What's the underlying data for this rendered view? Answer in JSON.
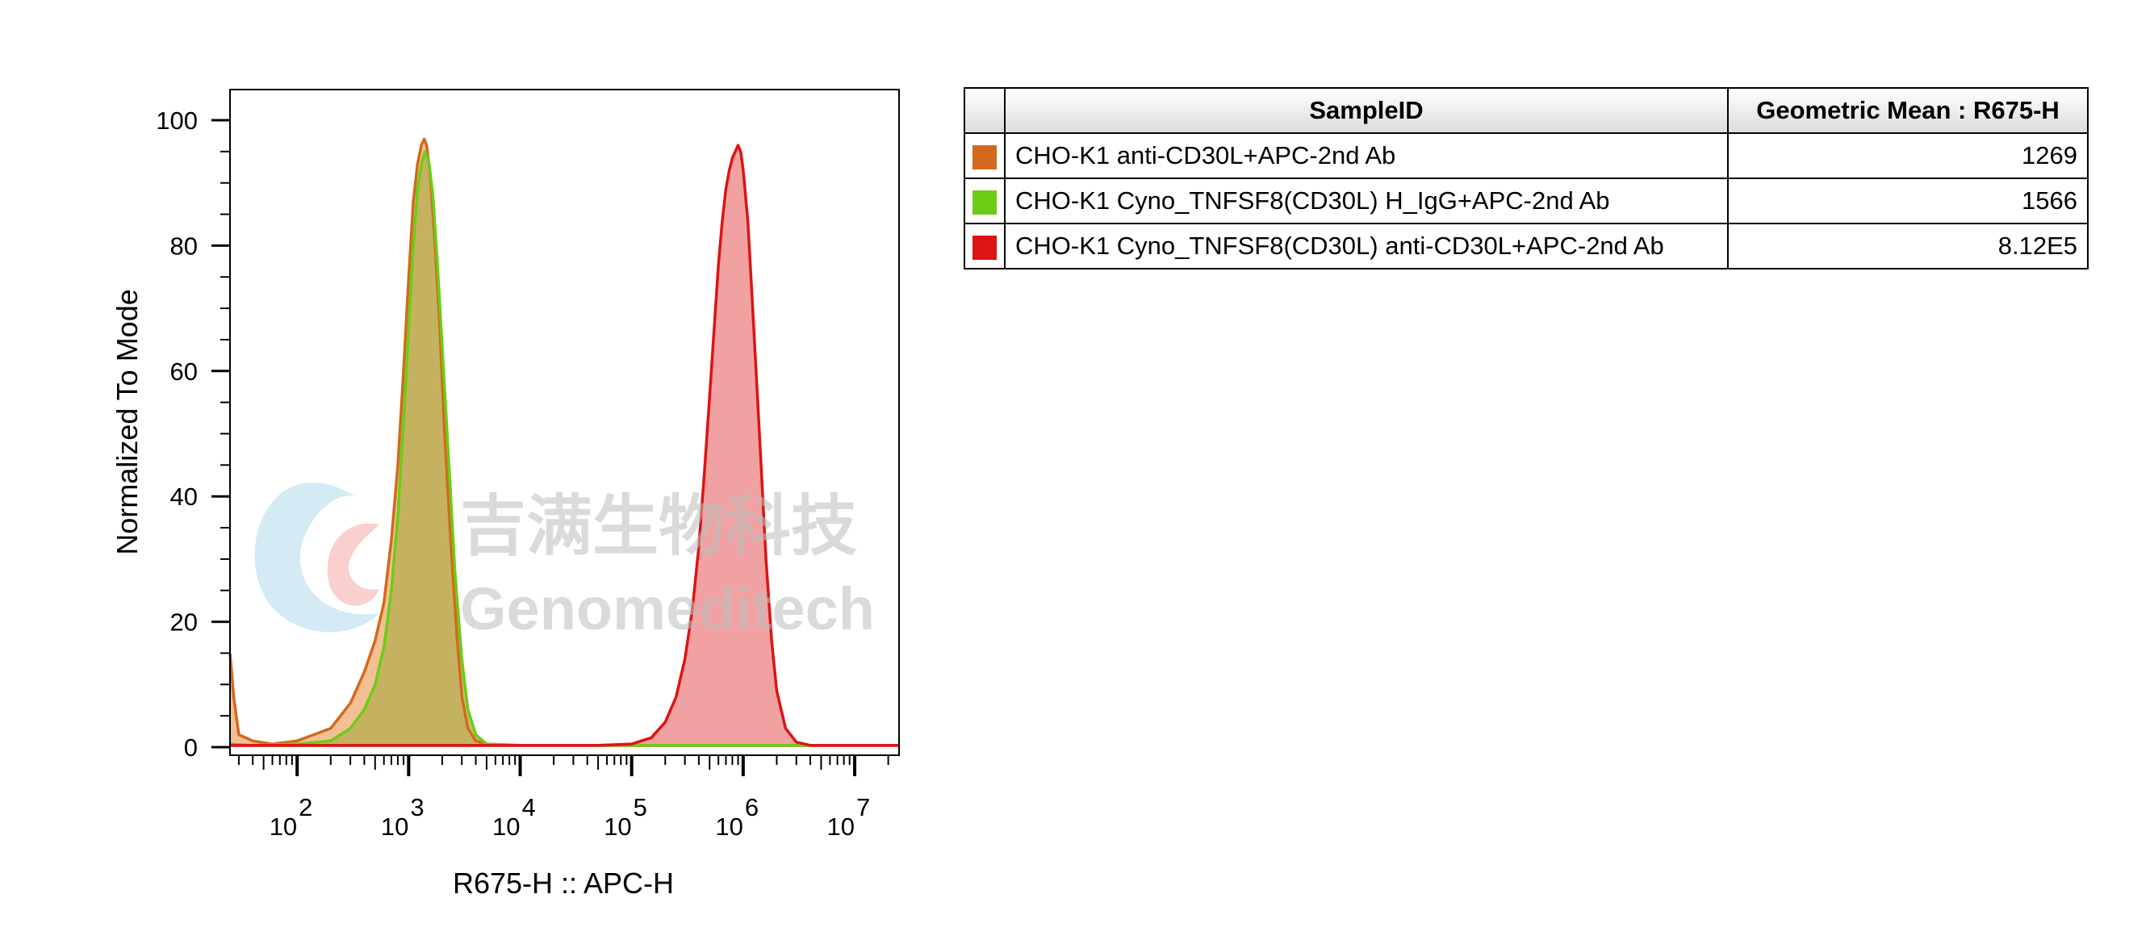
{
  "chart_data": {
    "type": "area",
    "xlabel": "R675-H :: APC-H",
    "ylabel": "Normalized To Mode",
    "x_scale": "log",
    "xlim": [
      25,
      25000000
    ],
    "ylim": [
      0,
      100
    ],
    "x_ticks": [
      {
        "exp": "2",
        "value": 100
      },
      {
        "exp": "3",
        "value": 1000
      },
      {
        "exp": "4",
        "value": 10000
      },
      {
        "exp": "5",
        "value": 100000
      },
      {
        "exp": "6",
        "value": 1000000
      },
      {
        "exp": "7",
        "value": 10000000
      }
    ],
    "y_ticks": [
      0,
      20,
      40,
      60,
      80,
      100
    ],
    "series": [
      {
        "name": "CHO-K1 anti-CD30L+APC-2nd Ab",
        "color": "#d2691e",
        "fill": "#f0b07a",
        "points": [
          [
            25,
            15
          ],
          [
            27,
            8
          ],
          [
            30,
            2
          ],
          [
            40,
            1
          ],
          [
            60,
            0.5
          ],
          [
            100,
            1
          ],
          [
            200,
            3
          ],
          [
            300,
            7
          ],
          [
            400,
            12
          ],
          [
            500,
            17
          ],
          [
            600,
            23
          ],
          [
            700,
            33
          ],
          [
            800,
            45
          ],
          [
            900,
            60
          ],
          [
            1000,
            75
          ],
          [
            1100,
            87
          ],
          [
            1200,
            93
          ],
          [
            1300,
            96
          ],
          [
            1380,
            97
          ],
          [
            1450,
            96
          ],
          [
            1550,
            92
          ],
          [
            1700,
            82
          ],
          [
            1900,
            67
          ],
          [
            2100,
            50
          ],
          [
            2400,
            32
          ],
          [
            2700,
            18
          ],
          [
            3000,
            8
          ],
          [
            3400,
            3
          ],
          [
            4000,
            1
          ],
          [
            5000,
            0.5
          ],
          [
            10000,
            0.3
          ],
          [
            100000,
            0.3
          ],
          [
            1000000,
            0.3
          ],
          [
            10000000,
            0.3
          ],
          [
            25000000,
            0.3
          ]
        ]
      },
      {
        "name": "CHO-K1 Cyno_TNFSF8(CD30L) H_IgG+APC-2nd Ab",
        "color": "#6dcc16",
        "fill": "#b8ae52",
        "points": [
          [
            25,
            0.5
          ],
          [
            40,
            0.3
          ],
          [
            100,
            0.5
          ],
          [
            200,
            1
          ],
          [
            300,
            3
          ],
          [
            400,
            6
          ],
          [
            500,
            10
          ],
          [
            600,
            16
          ],
          [
            700,
            25
          ],
          [
            800,
            37
          ],
          [
            900,
            52
          ],
          [
            1000,
            67
          ],
          [
            1100,
            80
          ],
          [
            1200,
            89
          ],
          [
            1300,
            93
          ],
          [
            1400,
            95
          ],
          [
            1500,
            94
          ],
          [
            1650,
            88
          ],
          [
            1800,
            78
          ],
          [
            2000,
            64
          ],
          [
            2300,
            45
          ],
          [
            2600,
            28
          ],
          [
            3000,
            14
          ],
          [
            3400,
            6
          ],
          [
            4000,
            2
          ],
          [
            5000,
            0.5
          ],
          [
            10000,
            0.3
          ],
          [
            25000000,
            0.3
          ]
        ]
      },
      {
        "name": "CHO-K1 Cyno_TNFSF8(CD30L) anti-CD30L+APC-2nd Ab",
        "color": "#dc1414",
        "fill": "#ee8a8a",
        "points": [
          [
            25,
            0.3
          ],
          [
            50000,
            0.3
          ],
          [
            100000,
            0.5
          ],
          [
            150000,
            1.5
          ],
          [
            200000,
            4
          ],
          [
            250000,
            8
          ],
          [
            300000,
            14
          ],
          [
            350000,
            22
          ],
          [
            400000,
            32
          ],
          [
            450000,
            44
          ],
          [
            500000,
            56
          ],
          [
            550000,
            67
          ],
          [
            600000,
            77
          ],
          [
            650000,
            84
          ],
          [
            700000,
            89
          ],
          [
            750000,
            92
          ],
          [
            800000,
            94
          ],
          [
            850000,
            95
          ],
          [
            900000,
            96
          ],
          [
            950000,
            95
          ],
          [
            1000000,
            92
          ],
          [
            1100000,
            84
          ],
          [
            1200000,
            72
          ],
          [
            1400000,
            50
          ],
          [
            1600000,
            30
          ],
          [
            1800000,
            17
          ],
          [
            2000000,
            9
          ],
          [
            2400000,
            3
          ],
          [
            3000000,
            0.8
          ],
          [
            4000000,
            0.3
          ],
          [
            25000000,
            0.3
          ]
        ]
      }
    ]
  },
  "legend_table": {
    "headers": [
      "SampleID",
      "Geometric Mean : R675-H"
    ],
    "rows": [
      {
        "swatch": "#d2691e",
        "sample": "CHO-K1 anti-CD30L+APC-2nd Ab",
        "value": "1269"
      },
      {
        "swatch": "#6dcc16",
        "sample": "CHO-K1 Cyno_TNFSF8(CD30L) H_IgG+APC-2nd Ab",
        "value": "1566"
      },
      {
        "swatch": "#dc1414",
        "sample": "CHO-K1 Cyno_TNFSF8(CD30L) anti-CD30L+APC-2nd Ab",
        "value": "8.12E5"
      }
    ]
  },
  "watermark": {
    "cn": "吉满生物科技",
    "en": "Genomeditech"
  }
}
